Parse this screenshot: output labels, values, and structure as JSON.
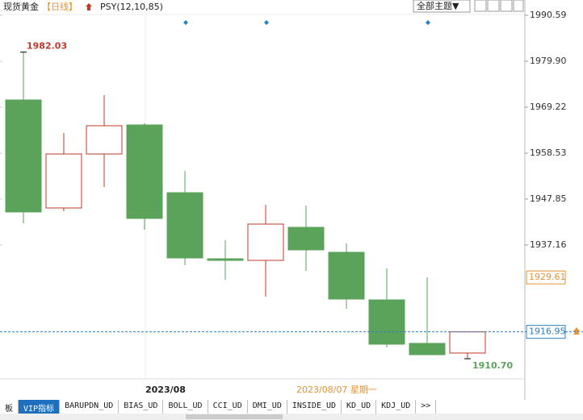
{
  "chart_data": {
    "type": "candlestick",
    "title": "现货黄金",
    "period": "【日线】",
    "indicator": "PSY(12,10,85)",
    "theme_button": "全部主题▼",
    "x_label": "2023/08",
    "cursor_date": "2023/08/07 星期一",
    "open": [
      1970.9,
      1945.77,
      1958.33,
      1965.09,
      1949.33,
      1933.95,
      1933.58,
      1941.27,
      1935.46,
      1924.39,
      1914.27,
      1912.02
    ],
    "high": [
      1982.03,
      1963.21,
      1972.03,
      1965.46,
      1954.4,
      1938.26,
      1946.52,
      1946.33,
      1937.52,
      1931.71,
      1929.64,
      1916.95
    ],
    "low": [
      1942.2,
      1945.02,
      1950.65,
      1940.71,
      1932.45,
      1929.08,
      1925.14,
      1931.14,
      1922.33,
      1913.33,
      1911.64,
      {
        "value": 1910.7,
        "label": "1910.70"
      }
    ],
    "close": [
      1944.84,
      1958.33,
      1964.9,
      1943.34,
      1934.14,
      1933.58,
      1942.02,
      1936.02,
      1924.58,
      1914.08,
      1911.64,
      1916.95
    ],
    "up_color": "#c0392b",
    "down_color": "#5ba35b",
    "ylim": [
      1906.01,
      1994.15
    ],
    "yticks": [
      1990.59,
      {
        "value": 1979.9,
        "label": "1979.90"
      },
      1969.22,
      1958.53,
      1947.85,
      1937.16
    ],
    "price_labels": [
      {
        "value": 1929.61,
        "color": "#e8912d"
      },
      {
        "value": 1916.95,
        "color": "#2a7fc1"
      }
    ],
    "tabs": [
      "板",
      "VIP指标",
      "BARUPDN_UD",
      "BIAS_UD",
      "BOLL_UD",
      "CCI_UD",
      "DMI_UD",
      "INSIDE_UD",
      "KD_UD",
      "KDJ_UD",
      ">>"
    ]
  }
}
